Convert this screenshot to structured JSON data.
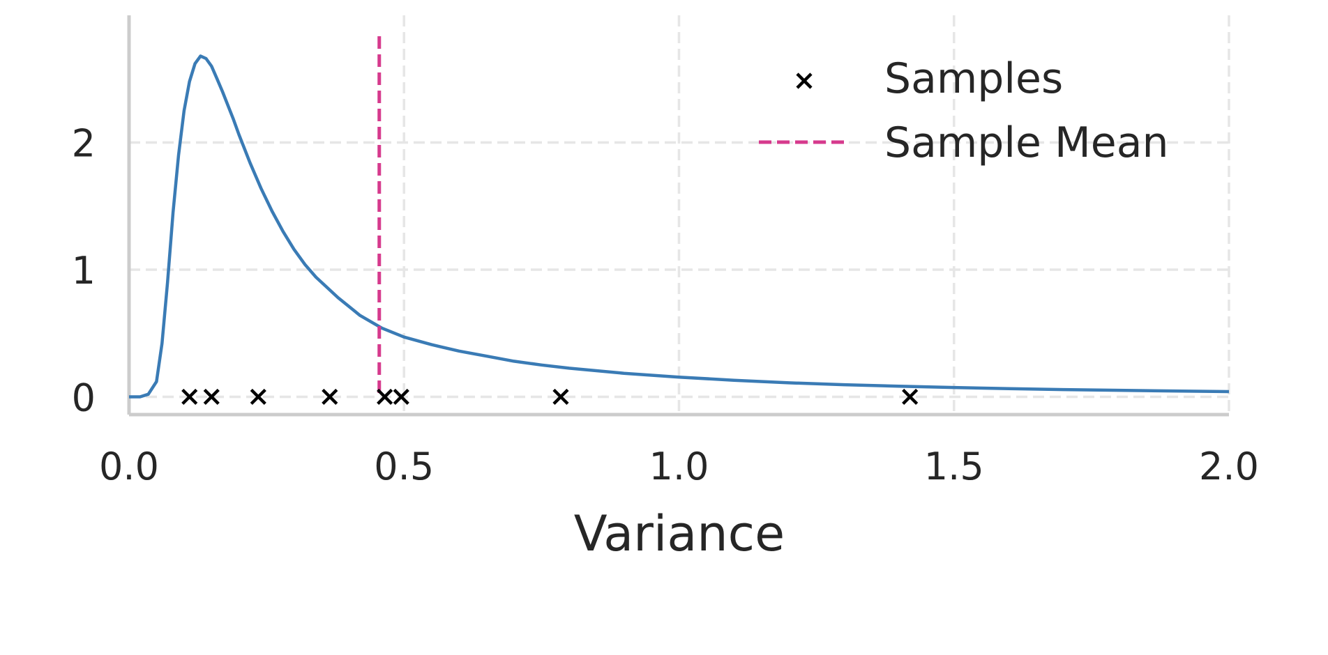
{
  "chart_data": {
    "type": "line",
    "title": "",
    "xlabel": "Variance",
    "ylabel": "",
    "xlim": [
      0.0,
      2.0
    ],
    "ylim": [
      -0.14,
      3.0
    ],
    "xticks": [
      0.0,
      0.5,
      1.0,
      1.5,
      2.0
    ],
    "xtick_labels": [
      "0.0",
      "0.5",
      "1.0",
      "1.5",
      "2.0"
    ],
    "yticks": [
      0,
      1,
      2
    ],
    "ytick_labels": [
      "0",
      "1",
      "2"
    ],
    "grid": true,
    "legend_position": "top-right",
    "colors": {
      "curve": "#3a7bb5",
      "mean": "#d63a8d",
      "samples": "#000000",
      "grid": "#e6e6e6",
      "spine": "#cccccc"
    },
    "series": [
      {
        "type": "line",
        "x": [
          0.0,
          0.02,
          0.035,
          0.05,
          0.06,
          0.07,
          0.08,
          0.09,
          0.1,
          0.11,
          0.12,
          0.13,
          0.14,
          0.15,
          0.16,
          0.17,
          0.18,
          0.19,
          0.2,
          0.22,
          0.24,
          0.26,
          0.28,
          0.3,
          0.32,
          0.34,
          0.36,
          0.38,
          0.4,
          0.42,
          0.44,
          0.46,
          0.5,
          0.55,
          0.6,
          0.65,
          0.7,
          0.75,
          0.8,
          0.9,
          1.0,
          1.1,
          1.2,
          1.3,
          1.4,
          1.5,
          1.6,
          1.7,
          1.8,
          1.9,
          2.0
        ],
        "y": [
          0.0,
          0.0,
          0.02,
          0.12,
          0.42,
          0.9,
          1.45,
          1.9,
          2.25,
          2.48,
          2.62,
          2.68,
          2.66,
          2.6,
          2.5,
          2.4,
          2.29,
          2.18,
          2.06,
          1.84,
          1.64,
          1.46,
          1.3,
          1.16,
          1.04,
          0.94,
          0.86,
          0.78,
          0.71,
          0.64,
          0.59,
          0.54,
          0.47,
          0.41,
          0.36,
          0.32,
          0.28,
          0.25,
          0.225,
          0.185,
          0.155,
          0.13,
          0.11,
          0.095,
          0.083,
          0.073,
          0.064,
          0.057,
          0.051,
          0.046,
          0.041
        ]
      },
      {
        "name": "Samples",
        "type": "scatter",
        "x": [
          0.11,
          0.15,
          0.235,
          0.365,
          0.465,
          0.495,
          0.785,
          1.42
        ],
        "y": [
          0,
          0,
          0,
          0,
          0,
          0,
          0,
          0
        ]
      },
      {
        "name": "Sample Mean",
        "type": "vline",
        "x": 0.455
      }
    ]
  }
}
